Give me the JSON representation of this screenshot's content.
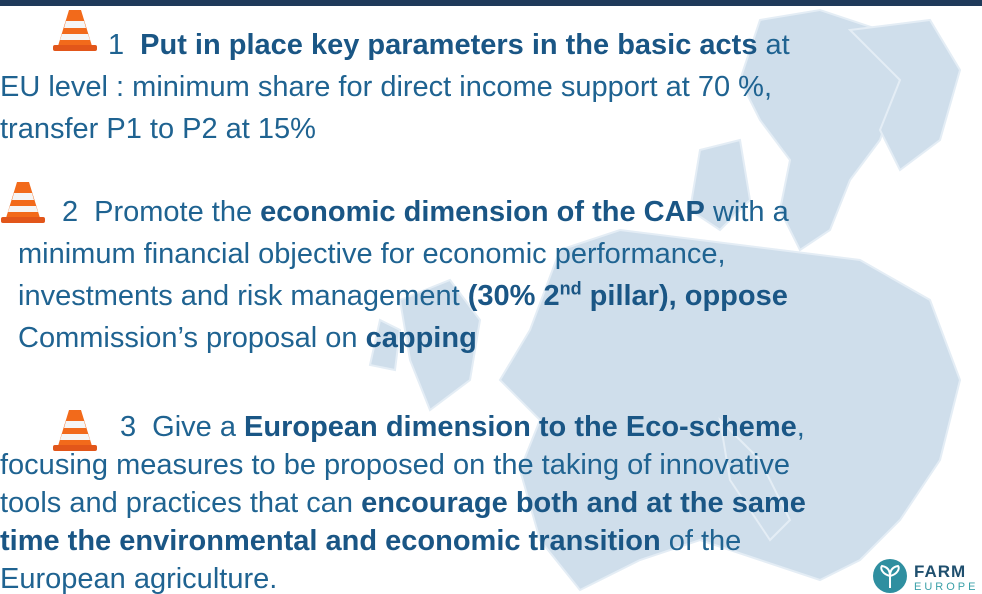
{
  "items": [
    {
      "number": "1",
      "lines": [
        [
          {
            "text": "Put in place key parameters in the basic acts",
            "bold": true
          },
          {
            "text": " at"
          }
        ],
        [
          {
            "text": "EU level : minimum share for direct income support at 70 %,"
          }
        ],
        [
          {
            "text": "transfer P1 to P2 at 15%"
          }
        ]
      ]
    },
    {
      "number": "2",
      "lines": [
        [
          {
            "text": "Promote the "
          },
          {
            "text": "economic dimension of the CAP",
            "bold": true
          },
          {
            "text": " with a"
          }
        ],
        [
          {
            "text": "minimum financial objective for economic performance,"
          }
        ],
        [
          {
            "text": "investments and risk management "
          },
          {
            "text": "(30% 2",
            "bold": true
          },
          {
            "text": "nd",
            "bold": true,
            "sup": true
          },
          {
            "text": " pillar), oppose",
            "bold": true
          }
        ],
        [
          {
            "text": "Commission’s proposal on "
          },
          {
            "text": "capping",
            "bold": true
          }
        ]
      ]
    },
    {
      "number": "3",
      "lines": [
        [
          {
            "text": "Give a "
          },
          {
            "text": "European dimension to the Eco-scheme",
            "bold": true
          },
          {
            "text": ","
          }
        ],
        [
          {
            "text": "focusing measures to be proposed on the taking of innovative"
          }
        ],
        [
          {
            "text": "tools and practices that can "
          },
          {
            "text": "encourage both and at the same",
            "bold": true
          }
        ],
        [
          {
            "text": "time the environmental and economic transition",
            "bold": true
          },
          {
            "text": " of the"
          }
        ],
        [
          {
            "text": "European agriculture."
          }
        ]
      ]
    }
  ],
  "logo": {
    "line1": "FARM",
    "line2": "EUROPE"
  }
}
